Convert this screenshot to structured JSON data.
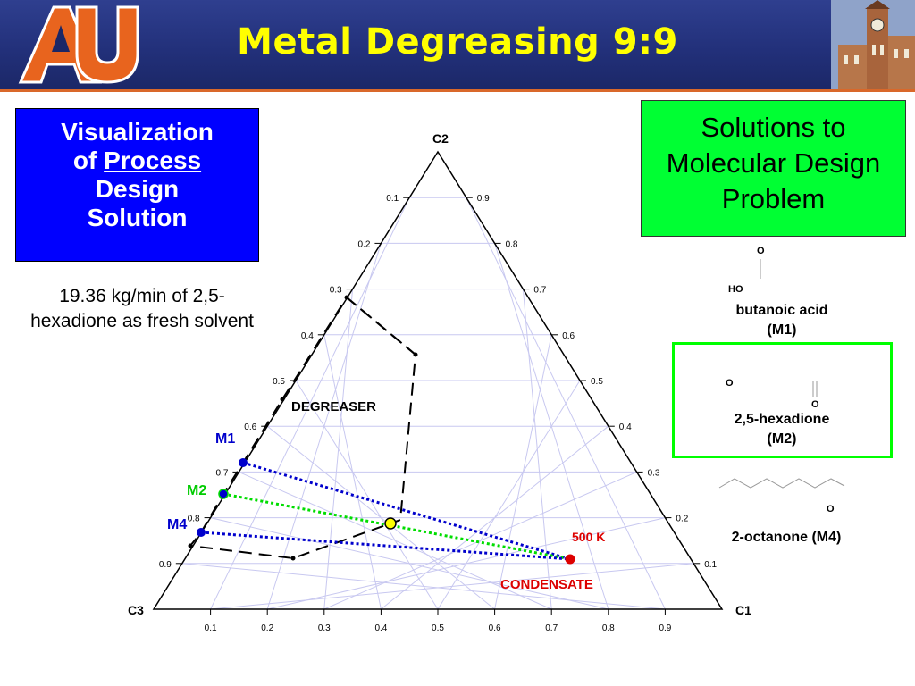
{
  "header": {
    "title": "Metal Degreasing  9:9"
  },
  "left_box": {
    "line1": "Visualization",
    "line2_prefix": "of ",
    "line2_underlined": "Process",
    "line3": "Design",
    "line4": "Solution"
  },
  "left_note": "19.36 kg/min of 2,5-hexadione as fresh solvent",
  "right_box": {
    "text": "Solutions to Molecular Design Problem"
  },
  "molecules": [
    {
      "name": "butanoic acid",
      "code": "(M1)",
      "atoms": [
        "O",
        "HO"
      ]
    },
    {
      "name": "2,5-hexadione",
      "code": "(M2)",
      "atoms": [
        "O",
        "O"
      ]
    },
    {
      "name": "2-octanone (M4)",
      "code": "",
      "atoms": [
        "O"
      ]
    }
  ],
  "diagram": {
    "vertices": {
      "top": "C2",
      "left": "C3",
      "right": "C1"
    },
    "left_edge_ticks": [
      "0.1",
      "0.2",
      "0.3",
      "0.4",
      "0.5",
      "0.6",
      "0.7",
      "0.8",
      "0.9"
    ],
    "right_edge_ticks": [
      "0.9",
      "0.8",
      "0.7",
      "0.6",
      "0.5",
      "0.4",
      "0.3",
      "0.2",
      "0.1"
    ],
    "bottom_ticks": [
      "0.1",
      "0.2",
      "0.3",
      "0.4",
      "0.5",
      "0.6",
      "0.7",
      "0.8",
      "0.9"
    ],
    "labels": {
      "degreaser": "DEGREASER",
      "condensate": "CONDENSATE",
      "temperature": "500 K",
      "m1": "M1",
      "m2": "M2",
      "m4": "M4"
    },
    "colors": {
      "grid": "#c8c8f0",
      "m1": "#0000cc",
      "m2": "#00dd00",
      "m4": "#0000cc",
      "condensate": "#dd0000",
      "mix": "#ffff00"
    }
  }
}
